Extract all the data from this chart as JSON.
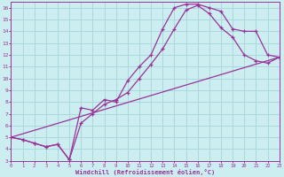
{
  "xlabel": "Windchill (Refroidissement éolien,°C)",
  "bg_color": "#cceef0",
  "line_color": "#993399",
  "grid_color": "#aad8dc",
  "curve1_x": [
    0,
    1,
    2,
    3,
    4,
    5,
    6,
    7,
    8,
    9,
    10,
    11,
    12,
    13,
    14,
    15,
    16,
    17,
    18,
    19,
    20,
    21,
    22,
    23
  ],
  "curve1_y": [
    5.0,
    4.8,
    4.5,
    4.2,
    4.4,
    3.1,
    7.5,
    7.3,
    8.2,
    8.0,
    9.8,
    11.0,
    12.0,
    14.2,
    16.0,
    16.3,
    16.3,
    16.0,
    15.7,
    14.2,
    14.0,
    14.0,
    12.0,
    11.8
  ],
  "curve2_x": [
    0,
    1,
    2,
    3,
    4,
    5,
    6,
    7,
    8,
    9,
    10,
    11,
    12,
    13,
    14,
    15,
    16,
    17,
    18,
    19,
    20,
    21,
    22,
    23
  ],
  "curve2_y": [
    5.0,
    4.8,
    4.5,
    4.2,
    4.4,
    3.1,
    6.2,
    7.0,
    7.8,
    8.2,
    8.8,
    10.0,
    11.2,
    12.5,
    14.2,
    15.8,
    16.2,
    15.5,
    14.3,
    13.5,
    12.0,
    11.5,
    11.3,
    11.8
  ],
  "curve3_x": [
    0,
    23
  ],
  "curve3_y": [
    5.0,
    11.8
  ],
  "xlim": [
    0,
    23
  ],
  "ylim": [
    3.0,
    16.5
  ],
  "xticks": [
    0,
    1,
    2,
    3,
    4,
    5,
    6,
    7,
    8,
    9,
    10,
    11,
    12,
    13,
    14,
    15,
    16,
    17,
    18,
    19,
    20,
    21,
    22,
    23
  ],
  "yticks": [
    3,
    4,
    5,
    6,
    7,
    8,
    9,
    10,
    11,
    12,
    13,
    14,
    15,
    16
  ]
}
